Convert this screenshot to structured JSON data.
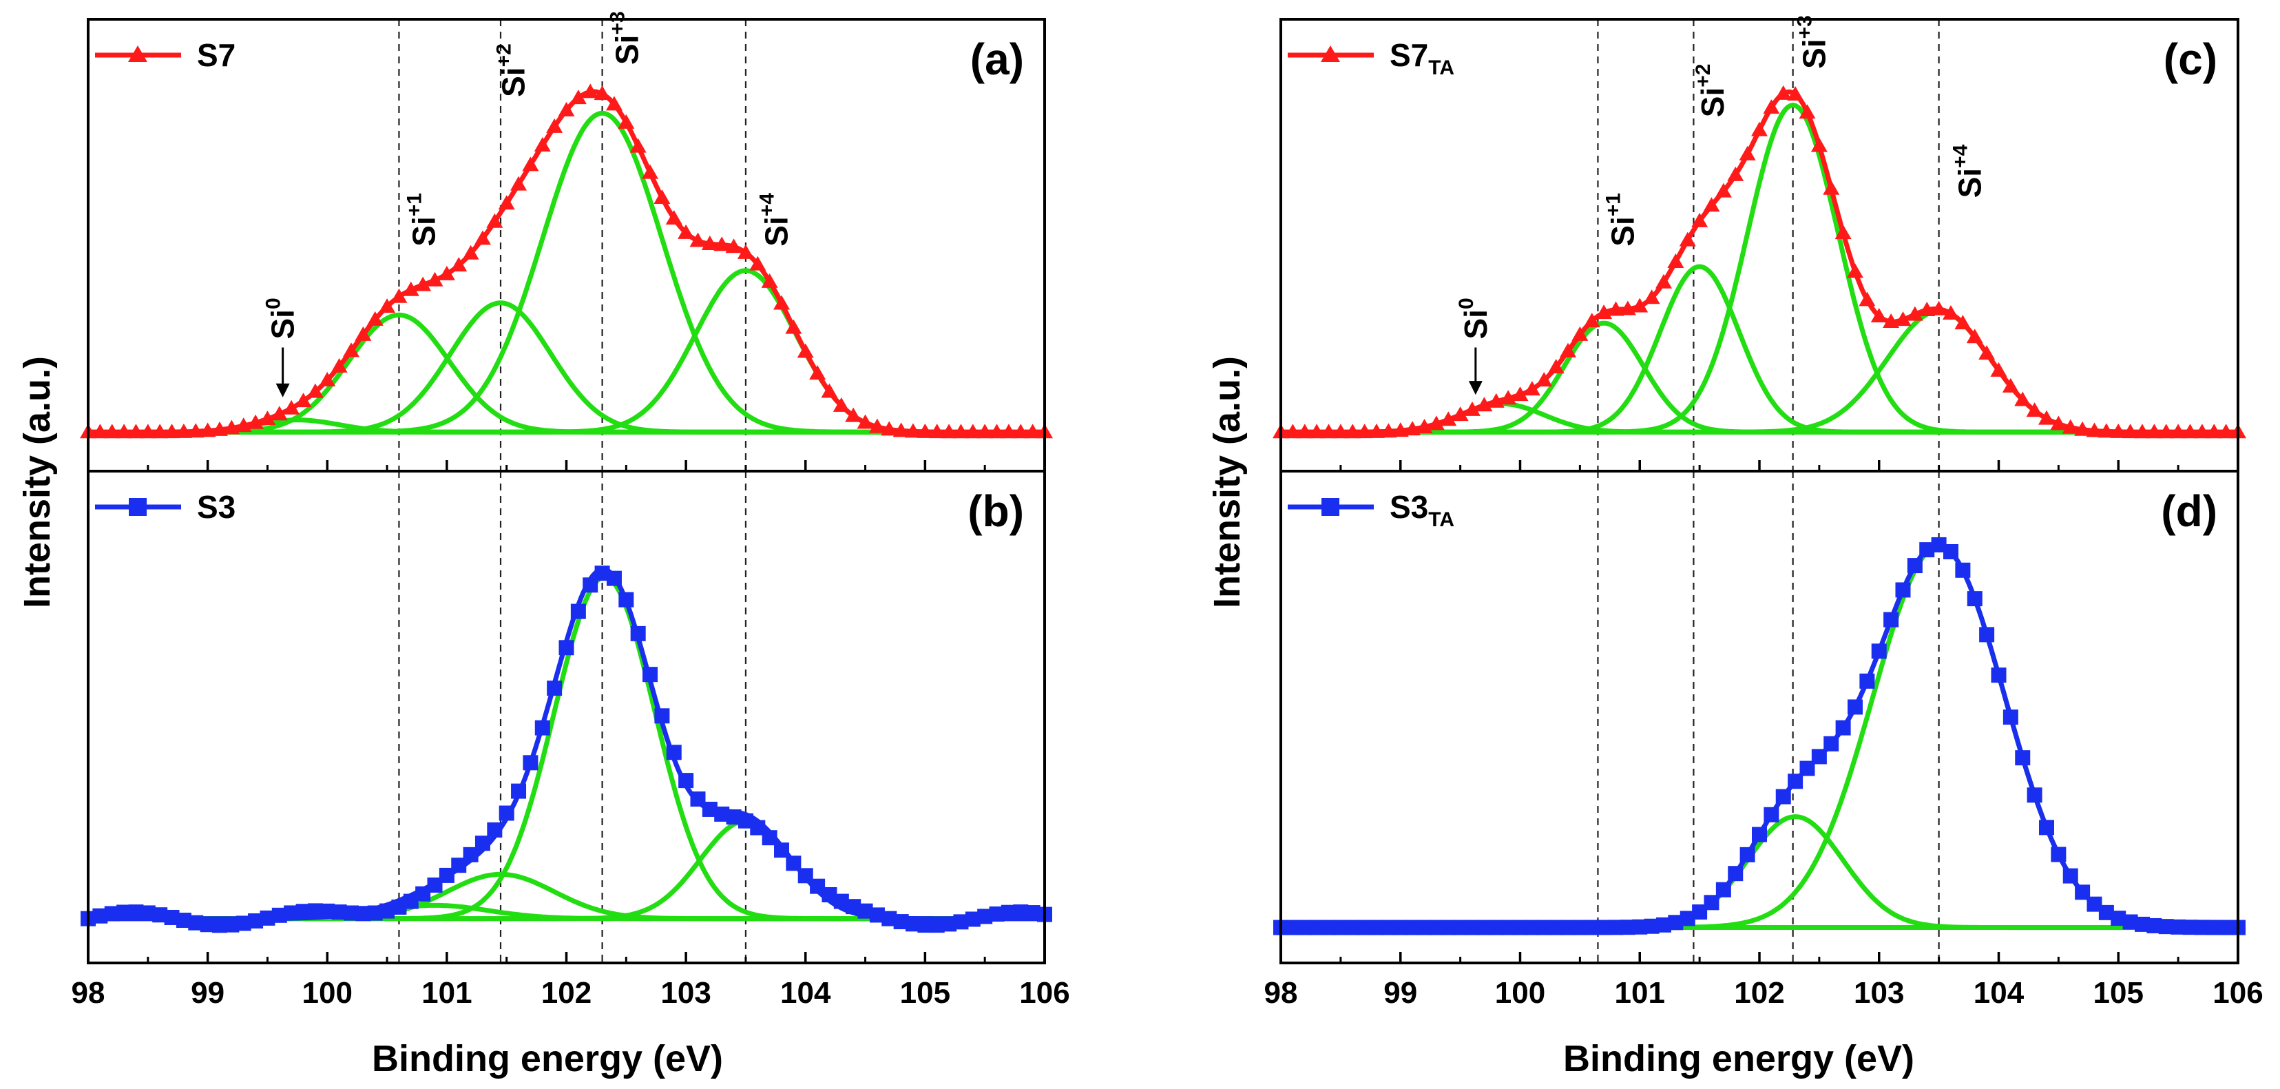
{
  "figure": {
    "ylabel_left": "Intensity (a.u.)",
    "ylabel_right": "Intensity (a.u.)",
    "xlabel_left": "Binding energy (eV)",
    "xlabel_right": "Binding energy (eV)",
    "colors": {
      "red": "#ff1a1a",
      "blue": "#1a2ef0",
      "green": "#22dd11"
    }
  },
  "chart_data": [
    {
      "id": "a",
      "type": "line",
      "panel_label": "(a)",
      "legend": {
        "name": "S7",
        "sub": "",
        "marker": "triangle",
        "color": "#ff1a1a",
        "placement": "top-left"
      },
      "xlim": [
        98,
        106
      ],
      "ylim": [
        0,
        1
      ],
      "x_ticks": [
        "98",
        "99",
        "100",
        "101",
        "102",
        "103",
        "104",
        "105",
        "106"
      ],
      "baseline": 0.02,
      "components": [
        {
          "name": "Si0",
          "center": 99.75,
          "height": 0.03,
          "sigma": 0.35
        },
        {
          "name": "Si+1",
          "center": 100.6,
          "height": 0.29,
          "sigma": 0.42
        },
        {
          "name": "Si+2",
          "center": 101.45,
          "height": 0.32,
          "sigma": 0.42
        },
        {
          "name": "Si+3",
          "center": 102.3,
          "height": 0.79,
          "sigma": 0.5
        },
        {
          "name": "Si+4",
          "center": 103.5,
          "height": 0.4,
          "sigma": 0.42
        }
      ],
      "data_points": {
        "x_start": 98.0,
        "x_step": 0.1,
        "count": 81
      },
      "annotations": [
        {
          "base": "Si",
          "sup": "0",
          "x": 99.72,
          "y": 0.25,
          "arrow": true
        },
        {
          "base": "Si",
          "sup": "+1",
          "x": 100.9,
          "y": 0.48
        },
        {
          "base": "Si",
          "sup": "+2",
          "x": 101.65,
          "y": 0.85
        },
        {
          "base": "Si",
          "sup": "+3",
          "x": 102.6,
          "y": 0.93
        },
        {
          "base": "Si",
          "sup": "+4",
          "x": 103.85,
          "y": 0.48
        }
      ],
      "vlines": [
        100.6,
        101.45,
        102.3,
        103.5
      ]
    },
    {
      "id": "b",
      "type": "line",
      "panel_label": "(b)",
      "legend": {
        "name": "S3",
        "sub": "",
        "marker": "square",
        "color": "#1a2ef0",
        "placement": "top-left"
      },
      "xlim": [
        98,
        106
      ],
      "ylim": [
        0,
        1
      ],
      "x_ticks": [
        "98",
        "99",
        "100",
        "101",
        "102",
        "103",
        "104",
        "105",
        "106"
      ],
      "baseline": 0.03,
      "components": [
        {
          "name": "Si+1",
          "center": 100.9,
          "height": 0.03,
          "sigma": 0.45
        },
        {
          "name": "Si+2",
          "center": 101.45,
          "height": 0.1,
          "sigma": 0.45
        },
        {
          "name": "Si+3",
          "center": 102.32,
          "height": 0.77,
          "sigma": 0.42
        },
        {
          "name": "Si+4",
          "center": 103.5,
          "height": 0.22,
          "sigma": 0.38
        }
      ],
      "data_points": {
        "x_start": 98.0,
        "x_step": 0.1,
        "count": 81
      },
      "annotations": [],
      "vlines": [
        100.6,
        101.45,
        102.3,
        103.5
      ]
    },
    {
      "id": "c",
      "type": "line",
      "panel_label": "(c)",
      "legend": {
        "name": "S7",
        "sub": "TA",
        "marker": "triangle",
        "color": "#ff1a1a",
        "placement": "top-left"
      },
      "xlim": [
        98,
        106
      ],
      "ylim": [
        0,
        1
      ],
      "x_ticks": [
        "98",
        "99",
        "100",
        "101",
        "102",
        "103",
        "104",
        "105",
        "106"
      ],
      "baseline": 0.02,
      "components": [
        {
          "name": "Si0",
          "center": 99.85,
          "height": 0.07,
          "sigma": 0.35
        },
        {
          "name": "Si+1",
          "center": 100.7,
          "height": 0.27,
          "sigma": 0.33
        },
        {
          "name": "Si+2",
          "center": 101.5,
          "height": 0.41,
          "sigma": 0.33
        },
        {
          "name": "Si+3",
          "center": 102.28,
          "height": 0.81,
          "sigma": 0.38
        },
        {
          "name": "Si+4",
          "center": 103.5,
          "height": 0.3,
          "sigma": 0.43
        }
      ],
      "data_points": {
        "x_start": 98.0,
        "x_step": 0.1,
        "count": 81
      },
      "annotations": [
        {
          "base": "Si",
          "sup": "0",
          "x": 99.72,
          "y": 0.25,
          "arrow": true
        },
        {
          "base": "Si",
          "sup": "+1",
          "x": 100.95,
          "y": 0.48
        },
        {
          "base": "Si",
          "sup": "+2",
          "x": 101.7,
          "y": 0.8
        },
        {
          "base": "Si",
          "sup": "+3",
          "x": 102.55,
          "y": 0.92
        },
        {
          "base": "Si",
          "sup": "+4",
          "x": 103.85,
          "y": 0.6
        }
      ],
      "vlines": [
        100.65,
        101.45,
        102.28,
        103.5
      ]
    },
    {
      "id": "d",
      "type": "line",
      "panel_label": "(d)",
      "legend": {
        "name": "S3",
        "sub": "TA",
        "marker": "square",
        "color": "#1a2ef0",
        "placement": "top-left"
      },
      "xlim": [
        98,
        106
      ],
      "ylim": [
        0,
        1
      ],
      "x_ticks": [
        "98",
        "99",
        "100",
        "101",
        "102",
        "103",
        "104",
        "105",
        "106"
      ],
      "baseline": 0.01,
      "components": [
        {
          "name": "Si+3",
          "center": 102.3,
          "height": 0.25,
          "sigma": 0.4
        },
        {
          "name": "Si+4",
          "center": 103.5,
          "height": 0.86,
          "sigma": 0.55
        }
      ],
      "data_points": {
        "x_start": 98.0,
        "x_step": 0.1,
        "count": 81
      },
      "annotations": [],
      "vlines": [
        100.65,
        101.45,
        102.28,
        103.5
      ]
    }
  ]
}
